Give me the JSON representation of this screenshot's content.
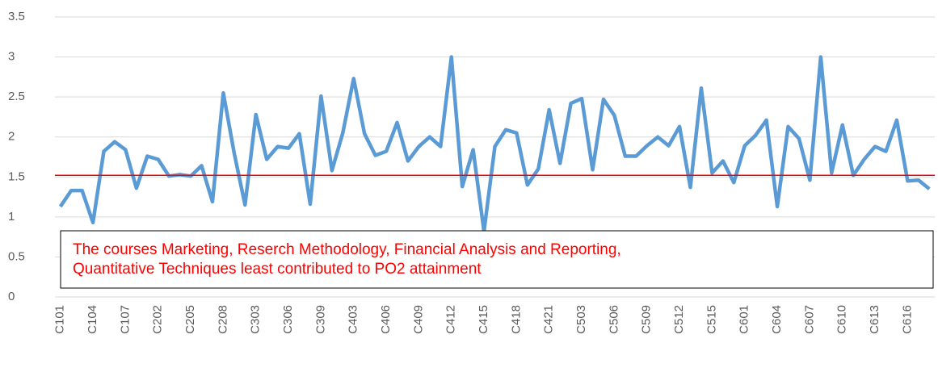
{
  "chart_data": {
    "type": "line",
    "categories": [
      "C101",
      null,
      null,
      "C104",
      null,
      null,
      "C107",
      null,
      null,
      "C202",
      null,
      null,
      "C205",
      null,
      null,
      "C208",
      null,
      null,
      "C303",
      null,
      null,
      "C306",
      null,
      null,
      "C309",
      null,
      null,
      "C403",
      null,
      null,
      "C406",
      null,
      null,
      "C409",
      null,
      null,
      "C412",
      null,
      null,
      "C415",
      null,
      null,
      "C418",
      null,
      null,
      "C421",
      null,
      null,
      "C503",
      null,
      null,
      "C506",
      null,
      null,
      "C509",
      null,
      null,
      "C512",
      null,
      null,
      "C515",
      null,
      null,
      "C601",
      null,
      null,
      "C604",
      null,
      null,
      "C607",
      null,
      null,
      "C610",
      null,
      null,
      "C613",
      null,
      null,
      "C616",
      null,
      null
    ],
    "series": [
      {
        "color": "#5b9bd5",
        "values": [
          1.13,
          1.33,
          1.33,
          0.93,
          1.82,
          1.94,
          1.84,
          1.36,
          1.76,
          1.72,
          1.51,
          1.53,
          1.51,
          1.64,
          1.19,
          2.55,
          1.8,
          1.15,
          2.28,
          1.72,
          1.88,
          1.86,
          2.04,
          1.16,
          2.51,
          1.58,
          2.05,
          2.73,
          2.04,
          1.77,
          1.82,
          2.18,
          1.7,
          1.88,
          2.0,
          1.88,
          3.0,
          1.38,
          1.84,
          0.82,
          1.88,
          2.09,
          2.05,
          1.4,
          1.6,
          2.34,
          1.67,
          2.42,
          2.48,
          1.59,
          2.47,
          2.27,
          1.76,
          1.76,
          1.89,
          2.0,
          1.89,
          2.13,
          1.37,
          2.61,
          1.55,
          1.7,
          1.43,
          1.89,
          2.02,
          2.21,
          1.13,
          2.13,
          1.98,
          1.46,
          3.0,
          1.55,
          2.15,
          1.52,
          1.72,
          1.88,
          1.82,
          2.21,
          1.45,
          1.46,
          1.35
        ]
      }
    ],
    "reference_line": {
      "value": 1.52,
      "color": "#ff0000"
    },
    "annotation": [
      "The courses Marketing, Reserch Methodology, Financial Analysis and Reporting,",
      "Quantitative Techniques least contributed to PO2 attainment"
    ],
    "ylim": [
      0,
      3.5
    ],
    "yticks": [
      0,
      0.5,
      1,
      1.5,
      2,
      2.5,
      3,
      3.5
    ],
    "grid": true
  }
}
